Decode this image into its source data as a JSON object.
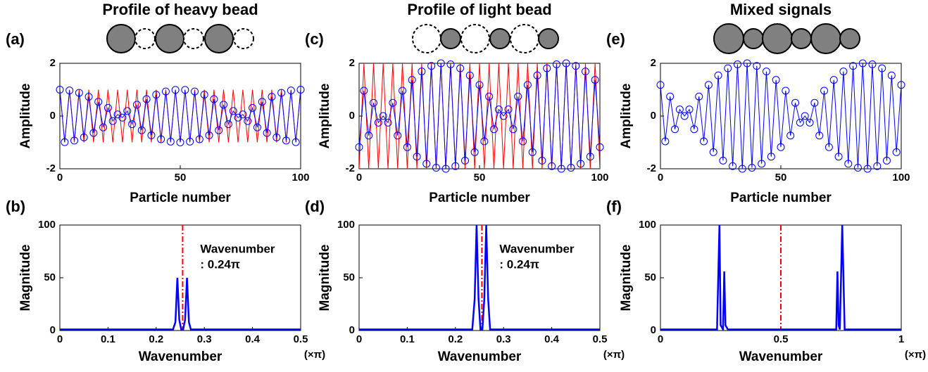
{
  "chart_data": [
    {
      "type": "line",
      "panel_label": "(a)",
      "title": "Profile of heavy bead",
      "xlabel": "Particle number",
      "ylabel": "Amplitude",
      "xlim": [
        0,
        100
      ],
      "ylim": [
        -2,
        2
      ],
      "xticks": [
        0,
        50,
        100
      ],
      "yticks": [
        -2,
        0,
        2
      ],
      "x": [
        0,
        2,
        4,
        6,
        8,
        10,
        12,
        14,
        16,
        18,
        20,
        22,
        24,
        26,
        28,
        30,
        32,
        34,
        36,
        38,
        40,
        42,
        44,
        46,
        48,
        50,
        52,
        54,
        56,
        58,
        60,
        62,
        64,
        66,
        68,
        70,
        72,
        74,
        76,
        78,
        80,
        82,
        84,
        86,
        88,
        90,
        92,
        94,
        96,
        98,
        100
      ],
      "series": [
        {
          "color": "#ff0000",
          "marker": "none",
          "values": [
            1,
            -1,
            1,
            -1,
            1,
            -1,
            1,
            -1,
            1,
            -1,
            1,
            -1,
            1,
            -1,
            1,
            -1,
            1,
            -1,
            1,
            -1,
            1,
            -1,
            1,
            -1,
            1,
            -1,
            1,
            -1,
            1,
            -1,
            1,
            -1,
            1,
            -1,
            1,
            -1,
            1,
            -1,
            1,
            -1,
            1,
            -1,
            1,
            -1,
            1,
            -1,
            1,
            -1,
            1,
            -1,
            1
          ]
        },
        {
          "color": "#0000ff",
          "marker": "circle",
          "values": [
            1,
            -0.99,
            0.97,
            -0.93,
            0.88,
            -0.81,
            0.73,
            -0.64,
            0.54,
            -0.43,
            0.31,
            -0.19,
            0.06,
            -0.06,
            0.19,
            -0.31,
            0.43,
            -0.54,
            0.64,
            -0.73,
            0.81,
            -0.88,
            0.93,
            -0.97,
            0.99,
            -1,
            0.99,
            -0.97,
            0.93,
            -0.88,
            0.81,
            -0.73,
            0.64,
            -0.54,
            0.43,
            -0.31,
            0.19,
            -0.06,
            0.06,
            -0.19,
            0.31,
            -0.43,
            0.54,
            -0.64,
            0.73,
            -0.81,
            0.88,
            -0.93,
            0.97,
            -0.99,
            1
          ]
        }
      ]
    },
    {
      "type": "line",
      "panel_label": "(b)",
      "xlabel": "Wavenumber",
      "ylabel": "Magnitude",
      "x_unit": "(×π)",
      "xlim": [
        0,
        0.5
      ],
      "ylim": [
        0,
        100
      ],
      "xticks": [
        0,
        0.1,
        0.2,
        0.3,
        0.4,
        0.5
      ],
      "yticks": [
        0,
        50,
        100
      ],
      "ref_line": {
        "x": 0.255,
        "color": "#ff0000"
      },
      "annotation": [
        "Wavenumber",
        ": 0.24π"
      ],
      "x": [
        0,
        0.1,
        0.2,
        0.235,
        0.24,
        0.244,
        0.248,
        0.252,
        0.256,
        0.26,
        0.264,
        0.268,
        0.272,
        0.3,
        0.4,
        0.5
      ],
      "series": [
        {
          "color": "#0000ff",
          "marker": "none",
          "values": [
            1,
            1,
            1,
            1,
            8,
            50,
            10,
            1,
            1,
            10,
            50,
            8,
            1,
            1,
            1,
            1
          ]
        }
      ]
    },
    {
      "type": "line",
      "panel_label": "(c)",
      "title": "Profile of light bead",
      "xlabel": "Particle number",
      "ylabel": "Amplitude",
      "xlim": [
        0,
        100
      ],
      "ylim": [
        -2,
        2
      ],
      "xticks": [
        0,
        50,
        100
      ],
      "yticks": [
        -2,
        0,
        2
      ],
      "x": [
        0,
        2,
        4,
        6,
        8,
        10,
        12,
        14,
        16,
        18,
        20,
        22,
        24,
        26,
        28,
        30,
        32,
        34,
        36,
        38,
        40,
        42,
        44,
        46,
        48,
        50,
        52,
        54,
        56,
        58,
        60,
        62,
        64,
        66,
        68,
        70,
        72,
        74,
        76,
        78,
        80,
        82,
        84,
        86,
        88,
        90,
        92,
        94,
        96,
        98,
        100
      ],
      "series": [
        {
          "color": "#ff0000",
          "marker": "none",
          "values": [
            -2,
            2,
            -2,
            2,
            -2,
            2,
            -2,
            2,
            -2,
            2,
            -2,
            2,
            -2,
            2,
            -2,
            2,
            -2,
            2,
            -2,
            2,
            -2,
            2,
            -2,
            2,
            -2,
            2,
            -2,
            2,
            -2,
            2,
            -2,
            2,
            -2,
            2,
            -2,
            2,
            -2,
            2,
            -2,
            2,
            -2,
            2,
            -2,
            2,
            -2,
            2,
            -2,
            2,
            -2,
            2,
            -2
          ]
        },
        {
          "color": "#0000ff",
          "marker": "circle",
          "values": [
            -1.18,
            0.96,
            -0.74,
            0.5,
            -0.25,
            0,
            -0.25,
            0.5,
            -0.74,
            0.96,
            -1.18,
            1.37,
            -1.54,
            1.69,
            -1.81,
            1.9,
            -1.96,
            2,
            -2,
            1.96,
            -1.9,
            1.81,
            -1.69,
            1.54,
            -1.37,
            1.18,
            -0.96,
            0.74,
            -0.5,
            0.25,
            0,
            0.25,
            -0.5,
            0.74,
            -0.96,
            1.18,
            -1.37,
            1.54,
            -1.69,
            1.81,
            -1.9,
            1.96,
            -2,
            2,
            -1.96,
            1.9,
            -1.81,
            1.69,
            -1.54,
            1.37,
            -1.18
          ]
        }
      ]
    },
    {
      "type": "line",
      "panel_label": "(d)",
      "xlabel": "Wavenumber",
      "ylabel": "Magnitude",
      "x_unit": "(×π)",
      "xlim": [
        0,
        0.5
      ],
      "ylim": [
        0,
        100
      ],
      "xticks": [
        0,
        0.1,
        0.2,
        0.3,
        0.4,
        0.5
      ],
      "yticks": [
        0,
        50,
        100
      ],
      "ref_line": {
        "x": 0.255,
        "color": "#ff0000"
      },
      "annotation": [
        "Wavenumber",
        ": 0.24π"
      ],
      "x": [
        0,
        0.1,
        0.2,
        0.235,
        0.24,
        0.244,
        0.248,
        0.252,
        0.256,
        0.26,
        0.264,
        0.268,
        0.272,
        0.3,
        0.4,
        0.5
      ],
      "series": [
        {
          "color": "#0000ff",
          "marker": "none",
          "values": [
            1,
            1,
            1,
            1,
            30,
            100,
            30,
            1,
            1,
            30,
            100,
            30,
            1,
            1,
            1,
            1
          ]
        }
      ]
    },
    {
      "type": "line",
      "panel_label": "(e)",
      "title": "Mixed signals",
      "xlabel": "Particle number",
      "ylabel": "Amplitude",
      "xlim": [
        0,
        100
      ],
      "ylim": [
        -2,
        2
      ],
      "xticks": [
        0,
        50,
        100
      ],
      "yticks": [
        -2,
        0,
        2
      ],
      "x": [
        0,
        2,
        4,
        6,
        8,
        10,
        12,
        14,
        16,
        18,
        20,
        22,
        24,
        26,
        28,
        30,
        32,
        34,
        36,
        38,
        40,
        42,
        44,
        46,
        48,
        50,
        52,
        54,
        56,
        58,
        60,
        62,
        64,
        66,
        68,
        70,
        72,
        74,
        76,
        78,
        80,
        82,
        84,
        86,
        88,
        90,
        92,
        94,
        96,
        98,
        100
      ],
      "series": [
        {
          "color": "#0000ff",
          "marker": "circle",
          "values": [
            1.18,
            -0.96,
            0.74,
            -0.5,
            0.25,
            0,
            0.25,
            -0.5,
            0.74,
            -0.96,
            1.18,
            -1.37,
            1.54,
            -1.69,
            1.81,
            -1.9,
            1.96,
            -2,
            2,
            -1.96,
            1.9,
            -1.81,
            1.69,
            -1.54,
            1.37,
            -1.18,
            0.96,
            -0.74,
            0.5,
            -0.25,
            0,
            -0.25,
            0.5,
            -0.74,
            0.96,
            -1.18,
            1.37,
            -1.54,
            1.69,
            -1.81,
            1.9,
            -1.96,
            2,
            -2,
            1.96,
            -1.9,
            1.81,
            -1.69,
            1.54,
            -1.37,
            1.18
          ]
        }
      ]
    },
    {
      "type": "line",
      "panel_label": "(f)",
      "xlabel": "Wavenumber",
      "ylabel": "Magnitude",
      "x_unit": "(×π)",
      "xlim": [
        0,
        1
      ],
      "ylim": [
        0,
        100
      ],
      "xticks": [
        0,
        0.5,
        1
      ],
      "yticks": [
        0,
        50,
        100
      ],
      "ref_line": {
        "x": 0.5,
        "color": "#ff0000"
      },
      "x": [
        0,
        0.2,
        0.235,
        0.245,
        0.25,
        0.26,
        0.265,
        0.27,
        0.28,
        0.72,
        0.73,
        0.735,
        0.74,
        0.745,
        0.755,
        0.765,
        0.8,
        1
      ],
      "series": [
        {
          "color": "#0000ff",
          "marker": "none",
          "values": [
            1,
            1,
            1,
            100,
            5,
            1,
            56,
            5,
            1,
            1,
            1,
            56,
            5,
            1,
            100,
            1,
            1,
            1
          ]
        }
      ]
    }
  ]
}
